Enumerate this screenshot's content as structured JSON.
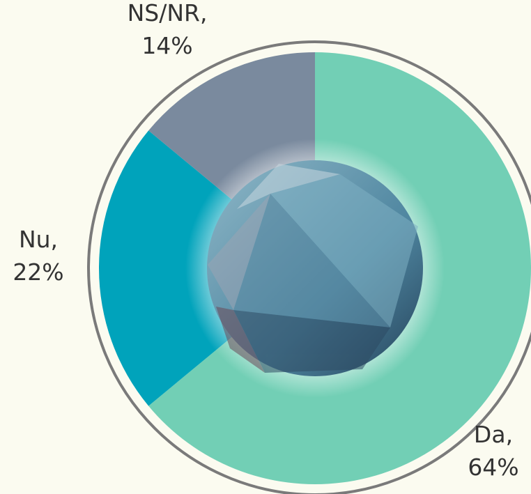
{
  "chart_data": {
    "type": "pie",
    "categories": [
      "Da",
      "Nu",
      "NS/NR"
    ],
    "values": [
      64,
      22,
      14
    ],
    "value_labels": [
      "64%",
      "22%",
      "14%"
    ],
    "label_separator": ",",
    "colors": [
      "#72cfb5",
      "#00a3bb",
      "#7a8a9e"
    ]
  }
}
